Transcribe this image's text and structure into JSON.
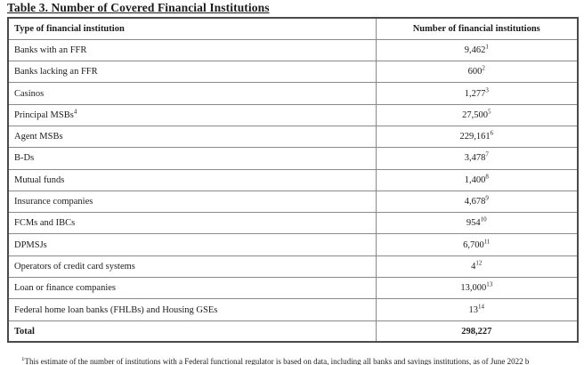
{
  "title": "Table 3. Number of Covered Financial Institutions",
  "table": {
    "headers": {
      "type": "Type of financial institution",
      "number": "Number of financial institutions"
    },
    "rows": [
      {
        "label": "Banks with an FFR",
        "label_sup": "",
        "value": "9,462",
        "value_sup": "1"
      },
      {
        "label": "Banks lacking an FFR",
        "label_sup": "",
        "value": "600",
        "value_sup": "2"
      },
      {
        "label": "Casinos",
        "label_sup": "",
        "value": "1,277",
        "value_sup": "3"
      },
      {
        "label": "Principal MSBs",
        "label_sup": "4",
        "value": "27,500",
        "value_sup": "5"
      },
      {
        "label": "Agent MSBs",
        "label_sup": "",
        "value": "229,161",
        "value_sup": "6"
      },
      {
        "label": "B-Ds",
        "label_sup": "",
        "value": "3,478",
        "value_sup": "7"
      },
      {
        "label": "Mutual funds",
        "label_sup": "",
        "value": "1,400",
        "value_sup": "8"
      },
      {
        "label": "Insurance companies",
        "label_sup": "",
        "value": "4,678",
        "value_sup": "9"
      },
      {
        "label": "FCMs and IBCs",
        "label_sup": "",
        "value": "954",
        "value_sup": "10"
      },
      {
        "label": "DPMSJs",
        "label_sup": "",
        "value": "6,700",
        "value_sup": "11"
      },
      {
        "label": "Operators of credit card systems",
        "label_sup": "",
        "value": "4",
        "value_sup": "12"
      },
      {
        "label": "Loan or finance companies",
        "label_sup": "",
        "value": "13,000",
        "value_sup": "13"
      },
      {
        "label": "Federal home loan banks (FHLBs) and Housing GSEs",
        "label_sup": "",
        "value": "13",
        "value_sup": "14"
      }
    ],
    "total": {
      "label": "Total",
      "value": "298,227"
    }
  },
  "footnote": {
    "sup": "1",
    "text": "This estimate of the number of institutions with a Federal functional regulator is based on data, including all banks and savings institutions, as of June 2022 b"
  }
}
